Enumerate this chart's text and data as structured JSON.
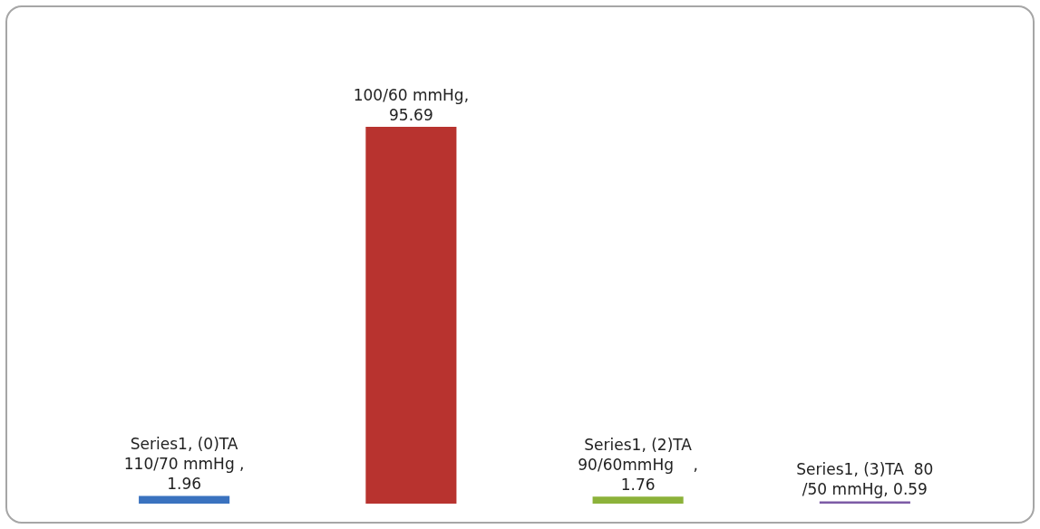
{
  "chart_data": {
    "type": "bar",
    "categories": [
      null,
      null,
      null,
      null
    ],
    "values": [
      1.96,
      95.69,
      1.76,
      0.59
    ],
    "colors": [
      "#3a72bf",
      "#b8332f",
      "#8cb23a",
      "#7d5ba6"
    ],
    "value_labels": [
      "Series1, (0)TA\n110/70 mmHg ,\n1.96",
      "100/60 mmHg,\n95.69",
      "Series1, (2)TA\n90/60mmHg    ,\n1.76",
      "Series1, (3)TA  80\n/50 mmHg, 0.59"
    ]
  }
}
